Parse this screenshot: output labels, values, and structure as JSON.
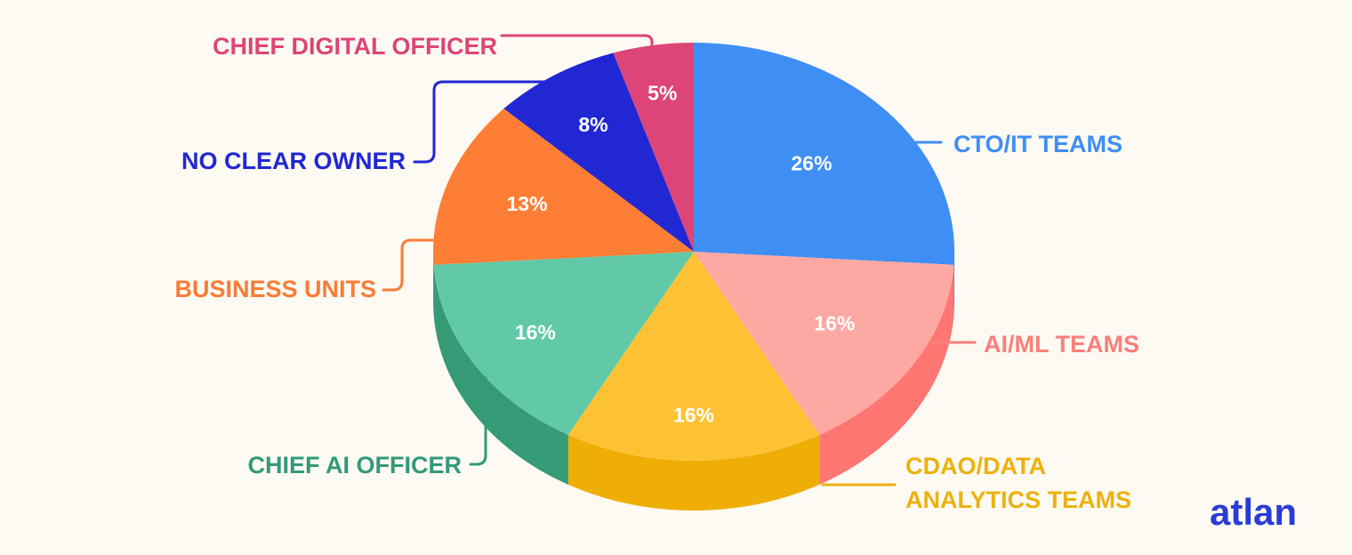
{
  "chart_data": {
    "type": "pie",
    "title": "",
    "slices": [
      {
        "label": "CTO/IT TEAMS",
        "value": 26,
        "display": "26%",
        "color": "#3f8ef4",
        "side_color": "#2f73d4"
      },
      {
        "label": "AI/ML TEAMS",
        "value": 16,
        "display": "16%",
        "color": "#fea8a4",
        "side_color": "#ff7672"
      },
      {
        "label": "CDAO/DATA ANALYTICS TEAMS",
        "lines": [
          "CDAO/DATA",
          "ANALYTICS TEAMS"
        ],
        "value": 16,
        "display": "16%",
        "color": "#fdc234",
        "side_color": "#efae06"
      },
      {
        "label": "CHIEF AI OFFICER",
        "value": 16,
        "display": "16%",
        "color": "#61c9a7",
        "side_color": "#359a76"
      },
      {
        "label": "BUSINESS UNITS",
        "value": 13,
        "display": "13%",
        "color": "#ff7e35",
        "side_color": "#e0601c"
      },
      {
        "label": "NO CLEAR OWNER",
        "value": 8,
        "display": "8%",
        "color": "#2127d3",
        "side_color": "#161b9f"
      },
      {
        "label": "CHIEF DIGITAL OFFICER",
        "value": 5,
        "display": "5%",
        "color": "#dd4477",
        "side_color": "#b5345e"
      }
    ],
    "label_colors": {
      "CTO/IT TEAMS": "#3f8ef4",
      "AI/ML TEAMS": "#fc7f7a",
      "CDAO/DATA ANALYTICS TEAMS": "#edb10d",
      "CHIEF AI OFFICER": "#33997a",
      "BUSINESS UNITS": "#f97c36",
      "NO CLEAR OWNER": "#2127d3",
      "CHIEF DIGITAL OFFICER": "#dd4477"
    }
  },
  "brand": {
    "logo_text": "atlan",
    "color": "#2a3bd6"
  }
}
